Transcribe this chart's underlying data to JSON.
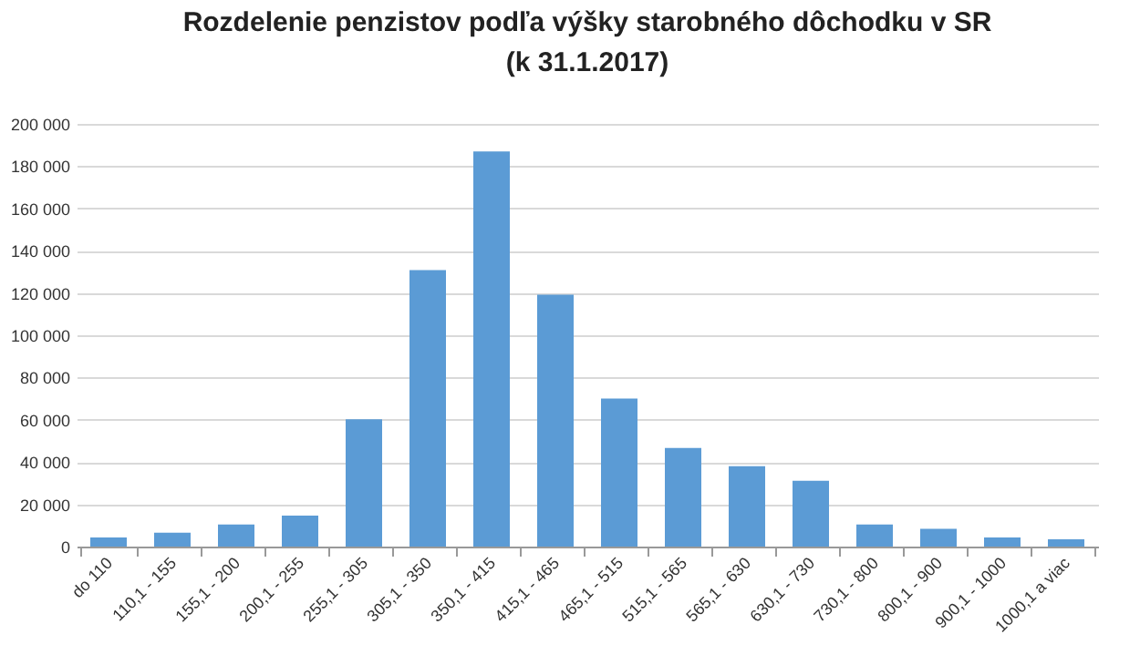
{
  "chart_data": {
    "type": "bar",
    "title": [
      "Rozdelenie penzistov podľa výšky starobného dôchodku  v SR",
      "(k 31.1.2017)"
    ],
    "categories": [
      "do 110",
      "110,1 - 155",
      "155,1 - 200",
      "200,1 - 255",
      "255,1 - 305",
      "305,1 - 350",
      "350,1 - 415",
      "415,1 - 465",
      "465,1 - 515",
      "515,1 - 565",
      "565,1 - 630",
      "630,1 - 730",
      "730,1 - 800",
      "800,1 - 900",
      "900,1 - 1000",
      "1000,1 a viac"
    ],
    "values": [
      4300,
      6600,
      10400,
      14700,
      60200,
      130800,
      187000,
      119200,
      70000,
      46700,
      38000,
      31100,
      10400,
      8400,
      4300,
      3500
    ],
    "color": "#5b9bd5",
    "ylim": [
      0,
      200000
    ],
    "yticks": [
      {
        "value": 0,
        "label": "0"
      },
      {
        "value": 20000,
        "label": "20 000"
      },
      {
        "value": 40000,
        "label": "40 000"
      },
      {
        "value": 60000,
        "label": "60 000"
      },
      {
        "value": 80000,
        "label": "80 000"
      },
      {
        "value": 100000,
        "label": "100 000"
      },
      {
        "value": 120000,
        "label": "120 000"
      },
      {
        "value": 140000,
        "label": "140 000"
      },
      {
        "value": 160000,
        "label": "160 000"
      },
      {
        "value": 180000,
        "label": "180 000"
      },
      {
        "value": 200000,
        "label": "200 000"
      }
    ],
    "grid": "y"
  }
}
